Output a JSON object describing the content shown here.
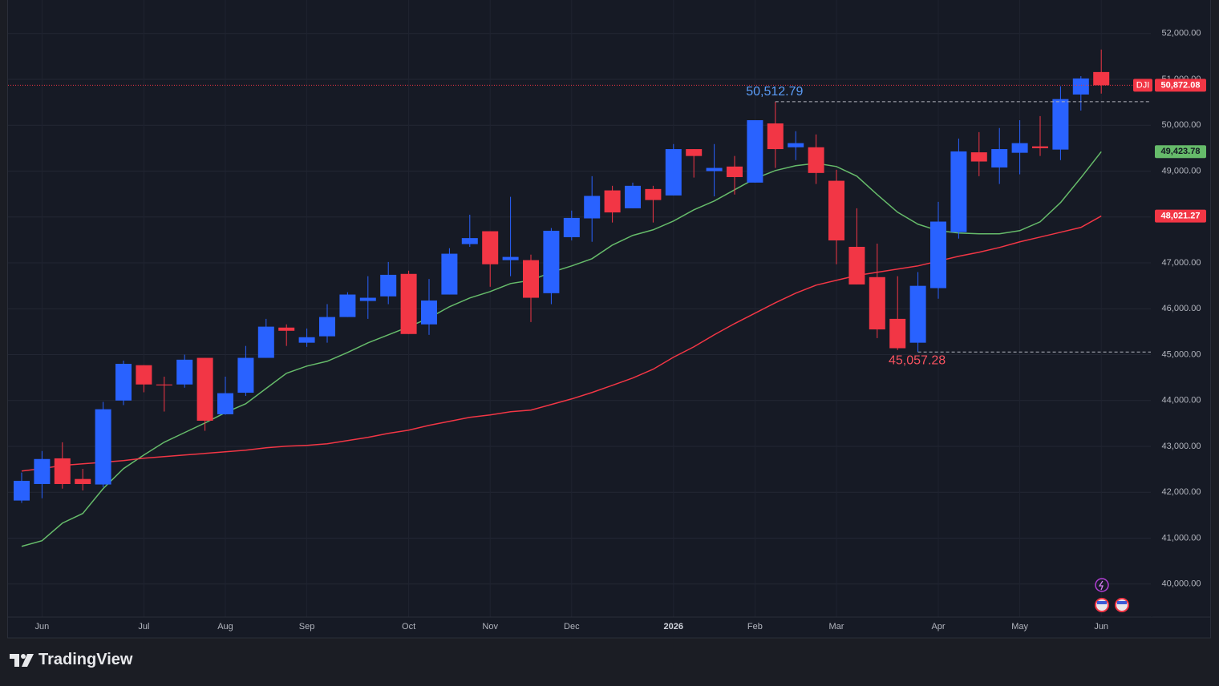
{
  "chart_data": {
    "type": "candlestick",
    "symbol": "DJI",
    "categories": [
      null,
      "Jun",
      null,
      null,
      null,
      null,
      "Jul",
      null,
      null,
      null,
      "Aug",
      null,
      null,
      null,
      "Sep",
      null,
      null,
      null,
      null,
      "Oct",
      null,
      null,
      null,
      "Nov",
      null,
      null,
      null,
      "Dec",
      null,
      null,
      null,
      null,
      "2026",
      null,
      null,
      null,
      "Feb",
      null,
      null,
      null,
      "Mar",
      null,
      null,
      null,
      null,
      "Apr",
      null,
      null,
      null,
      "May",
      null,
      null,
      null,
      "Jun"
    ],
    "open": [
      41820,
      42180,
      42740,
      42290,
      42170,
      44000,
      44770,
      44350,
      44350,
      44930,
      43700,
      44170,
      44930,
      45590,
      45260,
      45400,
      45820,
      46170,
      46270,
      46760,
      45660,
      46310,
      47410,
      47690,
      47060,
      47060,
      46340,
      47560,
      47970,
      48580,
      48190,
      48610,
      48470,
      49480,
      49000,
      49100,
      48750,
      50040,
      49520,
      49520,
      48790,
      47350,
      46690,
      45780,
      45260,
      46450,
      47670,
      49410,
      49080,
      49400,
      49540,
      49470,
      50670,
      51160
    ],
    "high": [
      42430,
      42900,
      43090,
      42510,
      43970,
      44870,
      44770,
      44520,
      45000,
      44930,
      44520,
      45190,
      45780,
      45660,
      45570,
      46100,
      46360,
      46710,
      47020,
      46830,
      46650,
      47320,
      48050,
      47690,
      48440,
      47180,
      47760,
      48140,
      48890,
      48680,
      48750,
      48680,
      49590,
      49480,
      49590,
      49330,
      50110,
      50512.79,
      49870,
      49800,
      49030,
      48190,
      47420,
      46710,
      46800,
      48330,
      49710,
      49850,
      49940,
      50110,
      50200,
      50850,
      51070,
      51650
    ],
    "low": [
      41770,
      41870,
      42080,
      42040,
      42110,
      43900,
      44180,
      43760,
      44280,
      43340,
      43690,
      44100,
      44930,
      45190,
      45170,
      45260,
      45820,
      45780,
      46100,
      45450,
      45430,
      46310,
      47350,
      46480,
      46710,
      45710,
      46100,
      47490,
      47460,
      47880,
      48190,
      47880,
      48470,
      48860,
      48450,
      48490,
      48750,
      49070,
      49240,
      48720,
      46970,
      46530,
      45360,
      45100,
      45057.28,
      46220,
      47530,
      48890,
      48720,
      48930,
      49330,
      49240,
      50320,
      50690
    ],
    "close": [
      42250,
      42725,
      42180,
      42180,
      43810,
      44800,
      44350,
      44330,
      44890,
      43560,
      44160,
      44930,
      45610,
      45520,
      45380,
      45820,
      46310,
      46240,
      46740,
      45450,
      46180,
      47200,
      47540,
      46970,
      47130,
      46240,
      47700,
      47980,
      48460,
      48100,
      48680,
      48370,
      49480,
      49330,
      49070,
      48870,
      50110,
      49480,
      49610,
      48960,
      47490,
      46530,
      45550,
      45140,
      46500,
      47900,
      49430,
      49210,
      49480,
      49610,
      49500,
      50570,
      51020,
      50872.08
    ],
    "up_color": "#2962ff",
    "down_color": "#f23645",
    "last_price": {
      "value": 50872.08,
      "label": "50,872.08"
    },
    "overlays": [
      {
        "color": "#66bb6a",
        "values": [
          40821,
          40944,
          41328,
          41538,
          42079,
          42516,
          42813,
          43092,
          43302,
          43511,
          43738,
          43930,
          44262,
          44594,
          44751,
          44856,
          45048,
          45258,
          45432,
          45607,
          45799,
          46044,
          46236,
          46375,
          46550,
          46620,
          46795,
          46934,
          47092,
          47389,
          47599,
          47721,
          47913,
          48157,
          48349,
          48594,
          48838,
          49013,
          49118,
          49170,
          49100,
          48891,
          48489,
          48105,
          47843,
          47703,
          47651,
          47633,
          47633,
          47703,
          47895,
          48314,
          48856,
          49423.78
        ],
        "last_label": "49,423.78"
      },
      {
        "color": "#f23645",
        "values": [
          42463,
          42516,
          42586,
          42620,
          42655,
          42690,
          42743,
          42777,
          42812,
          42847,
          42882,
          42917,
          42970,
          43005,
          43022,
          43057,
          43127,
          43197,
          43284,
          43354,
          43459,
          43546,
          43633,
          43686,
          43756,
          43791,
          43913,
          44035,
          44175,
          44332,
          44490,
          44682,
          44944,
          45171,
          45433,
          45677,
          45904,
          46131,
          46341,
          46515,
          46620,
          46725,
          46795,
          46865,
          46934,
          47039,
          47144,
          47232,
          47336,
          47459,
          47563,
          47668,
          47773,
          48021.27
        ],
        "last_label": "48,021.27"
      }
    ],
    "annotations": [
      {
        "value": 50512.79,
        "label": "50,512.79",
        "color": "#5b9cf6",
        "index": 37
      },
      {
        "value": 45057.28,
        "label": "45,057.28",
        "color": "#f7525f",
        "index": 44
      }
    ],
    "ylim": [
      39280,
      52730
    ],
    "yticks": [
      {
        "value": 40000,
        "label": "40,000.00"
      },
      {
        "value": 41000,
        "label": "41,000.00"
      },
      {
        "value": 42000,
        "label": "42,000.00"
      },
      {
        "value": 43000,
        "label": "43,000.00"
      },
      {
        "value": 44000,
        "label": "44,000.00"
      },
      {
        "value": 45000,
        "label": "45,000.00"
      },
      {
        "value": 46000,
        "label": "46,000.00"
      },
      {
        "value": 47000,
        "label": "47,000.00"
      },
      {
        "value": 48000,
        "label": "48,000.00"
      },
      {
        "value": 49000,
        "label": "49,000.00"
      },
      {
        "value": 50000,
        "label": "50,000.00"
      },
      {
        "value": 51000,
        "label": "51,000.00"
      },
      {
        "value": 52000,
        "label": "52,000.00"
      }
    ],
    "grid": true
  },
  "footer": {
    "brand": "TradingView"
  }
}
